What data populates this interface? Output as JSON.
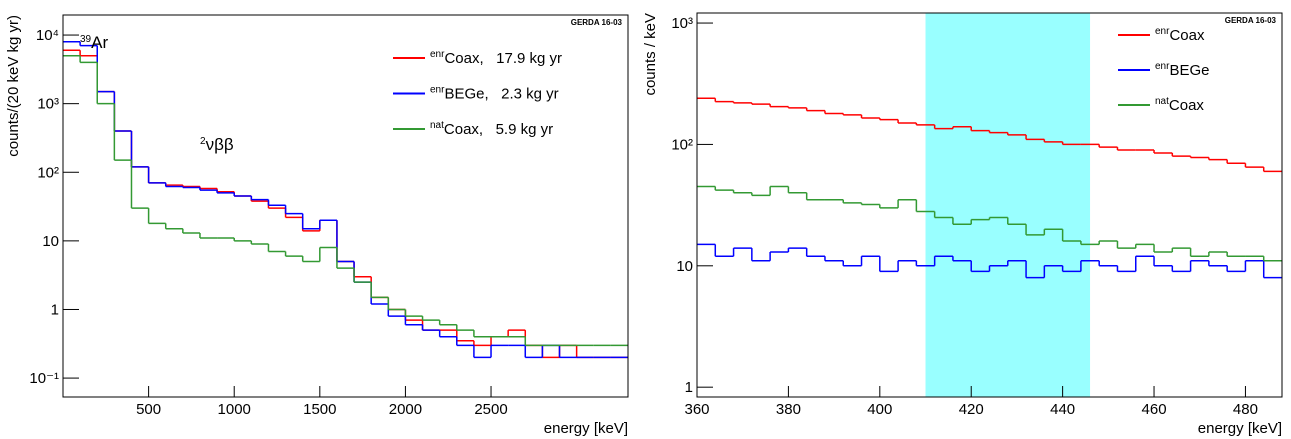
{
  "chart_data": [
    {
      "type": "histogram",
      "ylabel": "counts/(20 keV kg yr)",
      "xlabel": "energy [keV]",
      "label": "GERDA 16-03",
      "annotations": [
        "39Ar",
        "2νββ"
      ],
      "xlim": [
        0,
        3300
      ],
      "xticks": [
        500,
        1000,
        1500,
        2000,
        2500
      ],
      "ylog": true,
      "ylim": [
        0.053,
        19600
      ],
      "yticks": [
        {
          "value": 0.1,
          "label": "10⁻¹"
        },
        1,
        10,
        {
          "value": 100,
          "label": "10²"
        },
        {
          "value": 1000,
          "label": "10³"
        },
        {
          "value": 10000,
          "label": "10⁴"
        }
      ],
      "legend": "upper right",
      "bins": [
        0,
        100,
        200,
        300,
        400,
        500,
        600,
        700,
        800,
        900,
        1000,
        1100,
        1200,
        1300,
        1400,
        1500,
        1600,
        1700,
        1800,
        1900,
        2000,
        2100,
        2200,
        2300,
        2400,
        2500,
        2600,
        2700,
        2800,
        2900,
        3000,
        3100,
        3200,
        3300
      ],
      "series": [
        {
          "name": "enrCoax,   17.9 kg yr",
          "color": "#ff0000",
          "values": [
            6000,
            5000,
            1500,
            400,
            120,
            70,
            65,
            62,
            58,
            52,
            45,
            38,
            30,
            22,
            14,
            20,
            5,
            3,
            1.5,
            1.0,
            0.7,
            0.5,
            0.5,
            0.35,
            0.3,
            0.4,
            0.5,
            0.3,
            0.2,
            0.3,
            0.2,
            0.2,
            0.2
          ]
        },
        {
          "name": "enrBEGe,   2.3 kg yr",
          "color": "#0000ff",
          "values": [
            8000,
            7000,
            1500,
            400,
            120,
            70,
            62,
            60,
            55,
            50,
            45,
            40,
            33,
            25,
            15,
            20,
            5,
            2.5,
            1.2,
            0.8,
            0.6,
            0.5,
            0.4,
            0.3,
            0.2,
            0.3,
            0.3,
            0.2,
            0.3,
            0.2,
            0.2,
            0.2,
            0.2
          ]
        },
        {
          "name": "natCoax,   5.9 kg yr",
          "color": "#339933",
          "values": [
            5000,
            4000,
            1000,
            150,
            30,
            18,
            15,
            13,
            11,
            11,
            10,
            9,
            7,
            6,
            5,
            8,
            4,
            2.5,
            1.5,
            1.0,
            0.8,
            0.7,
            0.6,
            0.5,
            0.4,
            0.4,
            0.4,
            0.3,
            0.3,
            0.3,
            0.3,
            0.3,
            0.3
          ]
        }
      ]
    },
    {
      "type": "histogram",
      "ylabel": "counts / keV",
      "xlabel": "energy [keV]",
      "label": "GERDA 16-03",
      "xlim": [
        360,
        488
      ],
      "xticks": [
        360,
        380,
        400,
        420,
        440,
        460,
        480
      ],
      "ylog": true,
      "ylim": [
        0.83,
        1210
      ],
      "yticks": [
        1,
        10,
        {
          "value": 100,
          "label": "10²"
        },
        {
          "value": 1000,
          "label": "10³"
        }
      ],
      "band": [
        410,
        446
      ],
      "band_color": "#99ffff",
      "legend": "upper right",
      "bins": [
        360,
        364,
        368,
        372,
        376,
        380,
        384,
        388,
        392,
        396,
        400,
        404,
        408,
        412,
        416,
        420,
        424,
        428,
        432,
        436,
        440,
        444,
        448,
        452,
        456,
        460,
        464,
        468,
        472,
        476,
        480,
        484,
        488
      ],
      "series": [
        {
          "name": "enrCoax",
          "color": "#ff0000",
          "values": [
            240,
            225,
            220,
            215,
            205,
            200,
            190,
            180,
            175,
            165,
            160,
            150,
            145,
            135,
            140,
            130,
            125,
            120,
            110,
            105,
            100,
            100,
            95,
            90,
            90,
            85,
            80,
            78,
            75,
            70,
            65,
            60
          ]
        },
        {
          "name": "enrBEGe",
          "color": "#0000ff",
          "values": [
            15,
            12,
            14,
            11,
            13,
            14,
            12,
            11,
            10,
            12,
            9,
            11,
            10,
            12,
            11,
            9,
            10,
            11,
            8,
            10,
            9,
            11,
            10,
            9,
            12,
            10,
            9,
            11,
            10,
            9,
            11,
            8
          ]
        },
        {
          "name": "natCoax",
          "color": "#339933",
          "values": [
            45,
            42,
            40,
            38,
            45,
            40,
            35,
            35,
            33,
            32,
            30,
            35,
            28,
            25,
            22,
            24,
            25,
            22,
            18,
            20,
            16,
            15,
            16,
            14,
            15,
            13,
            14,
            12,
            13,
            12,
            12,
            11
          ]
        }
      ]
    }
  ]
}
